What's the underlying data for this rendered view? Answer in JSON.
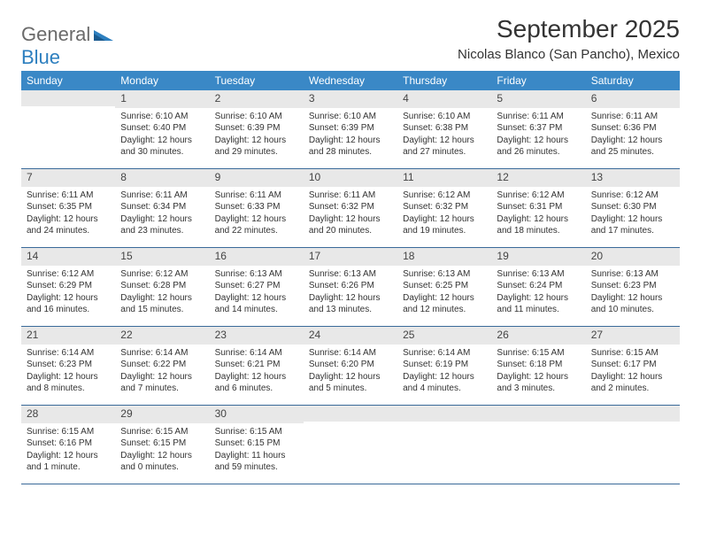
{
  "logo": {
    "text1": "General",
    "text2": "Blue"
  },
  "title": "September 2025",
  "location": "Nicolas Blanco (San Pancho), Mexico",
  "colors": {
    "header_bg": "#3a88c6",
    "band_bg": "#e8e8e8",
    "rule": "#3a6a99",
    "text": "#333333",
    "logo_gray": "#6a6a6a",
    "logo_blue": "#2d7fbf"
  },
  "typography": {
    "title_fontsize": 28,
    "location_fontsize": 15,
    "dow_fontsize": 12,
    "daynum_fontsize": 12,
    "body_fontsize": 10
  },
  "days_of_week": [
    "Sunday",
    "Monday",
    "Tuesday",
    "Wednesday",
    "Thursday",
    "Friday",
    "Saturday"
  ],
  "weeks": [
    [
      null,
      {
        "n": "1",
        "sr": "Sunrise: 6:10 AM",
        "ss": "Sunset: 6:40 PM",
        "d1": "Daylight: 12 hours",
        "d2": "and 30 minutes."
      },
      {
        "n": "2",
        "sr": "Sunrise: 6:10 AM",
        "ss": "Sunset: 6:39 PM",
        "d1": "Daylight: 12 hours",
        "d2": "and 29 minutes."
      },
      {
        "n": "3",
        "sr": "Sunrise: 6:10 AM",
        "ss": "Sunset: 6:39 PM",
        "d1": "Daylight: 12 hours",
        "d2": "and 28 minutes."
      },
      {
        "n": "4",
        "sr": "Sunrise: 6:10 AM",
        "ss": "Sunset: 6:38 PM",
        "d1": "Daylight: 12 hours",
        "d2": "and 27 minutes."
      },
      {
        "n": "5",
        "sr": "Sunrise: 6:11 AM",
        "ss": "Sunset: 6:37 PM",
        "d1": "Daylight: 12 hours",
        "d2": "and 26 minutes."
      },
      {
        "n": "6",
        "sr": "Sunrise: 6:11 AM",
        "ss": "Sunset: 6:36 PM",
        "d1": "Daylight: 12 hours",
        "d2": "and 25 minutes."
      }
    ],
    [
      {
        "n": "7",
        "sr": "Sunrise: 6:11 AM",
        "ss": "Sunset: 6:35 PM",
        "d1": "Daylight: 12 hours",
        "d2": "and 24 minutes."
      },
      {
        "n": "8",
        "sr": "Sunrise: 6:11 AM",
        "ss": "Sunset: 6:34 PM",
        "d1": "Daylight: 12 hours",
        "d2": "and 23 minutes."
      },
      {
        "n": "9",
        "sr": "Sunrise: 6:11 AM",
        "ss": "Sunset: 6:33 PM",
        "d1": "Daylight: 12 hours",
        "d2": "and 22 minutes."
      },
      {
        "n": "10",
        "sr": "Sunrise: 6:11 AM",
        "ss": "Sunset: 6:32 PM",
        "d1": "Daylight: 12 hours",
        "d2": "and 20 minutes."
      },
      {
        "n": "11",
        "sr": "Sunrise: 6:12 AM",
        "ss": "Sunset: 6:32 PM",
        "d1": "Daylight: 12 hours",
        "d2": "and 19 minutes."
      },
      {
        "n": "12",
        "sr": "Sunrise: 6:12 AM",
        "ss": "Sunset: 6:31 PM",
        "d1": "Daylight: 12 hours",
        "d2": "and 18 minutes."
      },
      {
        "n": "13",
        "sr": "Sunrise: 6:12 AM",
        "ss": "Sunset: 6:30 PM",
        "d1": "Daylight: 12 hours",
        "d2": "and 17 minutes."
      }
    ],
    [
      {
        "n": "14",
        "sr": "Sunrise: 6:12 AM",
        "ss": "Sunset: 6:29 PM",
        "d1": "Daylight: 12 hours",
        "d2": "and 16 minutes."
      },
      {
        "n": "15",
        "sr": "Sunrise: 6:12 AM",
        "ss": "Sunset: 6:28 PM",
        "d1": "Daylight: 12 hours",
        "d2": "and 15 minutes."
      },
      {
        "n": "16",
        "sr": "Sunrise: 6:13 AM",
        "ss": "Sunset: 6:27 PM",
        "d1": "Daylight: 12 hours",
        "d2": "and 14 minutes."
      },
      {
        "n": "17",
        "sr": "Sunrise: 6:13 AM",
        "ss": "Sunset: 6:26 PM",
        "d1": "Daylight: 12 hours",
        "d2": "and 13 minutes."
      },
      {
        "n": "18",
        "sr": "Sunrise: 6:13 AM",
        "ss": "Sunset: 6:25 PM",
        "d1": "Daylight: 12 hours",
        "d2": "and 12 minutes."
      },
      {
        "n": "19",
        "sr": "Sunrise: 6:13 AM",
        "ss": "Sunset: 6:24 PM",
        "d1": "Daylight: 12 hours",
        "d2": "and 11 minutes."
      },
      {
        "n": "20",
        "sr": "Sunrise: 6:13 AM",
        "ss": "Sunset: 6:23 PM",
        "d1": "Daylight: 12 hours",
        "d2": "and 10 minutes."
      }
    ],
    [
      {
        "n": "21",
        "sr": "Sunrise: 6:14 AM",
        "ss": "Sunset: 6:23 PM",
        "d1": "Daylight: 12 hours",
        "d2": "and 8 minutes."
      },
      {
        "n": "22",
        "sr": "Sunrise: 6:14 AM",
        "ss": "Sunset: 6:22 PM",
        "d1": "Daylight: 12 hours",
        "d2": "and 7 minutes."
      },
      {
        "n": "23",
        "sr": "Sunrise: 6:14 AM",
        "ss": "Sunset: 6:21 PM",
        "d1": "Daylight: 12 hours",
        "d2": "and 6 minutes."
      },
      {
        "n": "24",
        "sr": "Sunrise: 6:14 AM",
        "ss": "Sunset: 6:20 PM",
        "d1": "Daylight: 12 hours",
        "d2": "and 5 minutes."
      },
      {
        "n": "25",
        "sr": "Sunrise: 6:14 AM",
        "ss": "Sunset: 6:19 PM",
        "d1": "Daylight: 12 hours",
        "d2": "and 4 minutes."
      },
      {
        "n": "26",
        "sr": "Sunrise: 6:15 AM",
        "ss": "Sunset: 6:18 PM",
        "d1": "Daylight: 12 hours",
        "d2": "and 3 minutes."
      },
      {
        "n": "27",
        "sr": "Sunrise: 6:15 AM",
        "ss": "Sunset: 6:17 PM",
        "d1": "Daylight: 12 hours",
        "d2": "and 2 minutes."
      }
    ],
    [
      {
        "n": "28",
        "sr": "Sunrise: 6:15 AM",
        "ss": "Sunset: 6:16 PM",
        "d1": "Daylight: 12 hours",
        "d2": "and 1 minute."
      },
      {
        "n": "29",
        "sr": "Sunrise: 6:15 AM",
        "ss": "Sunset: 6:15 PM",
        "d1": "Daylight: 12 hours",
        "d2": "and 0 minutes."
      },
      {
        "n": "30",
        "sr": "Sunrise: 6:15 AM",
        "ss": "Sunset: 6:15 PM",
        "d1": "Daylight: 11 hours",
        "d2": "and 59 minutes."
      },
      null,
      null,
      null,
      null
    ]
  ]
}
